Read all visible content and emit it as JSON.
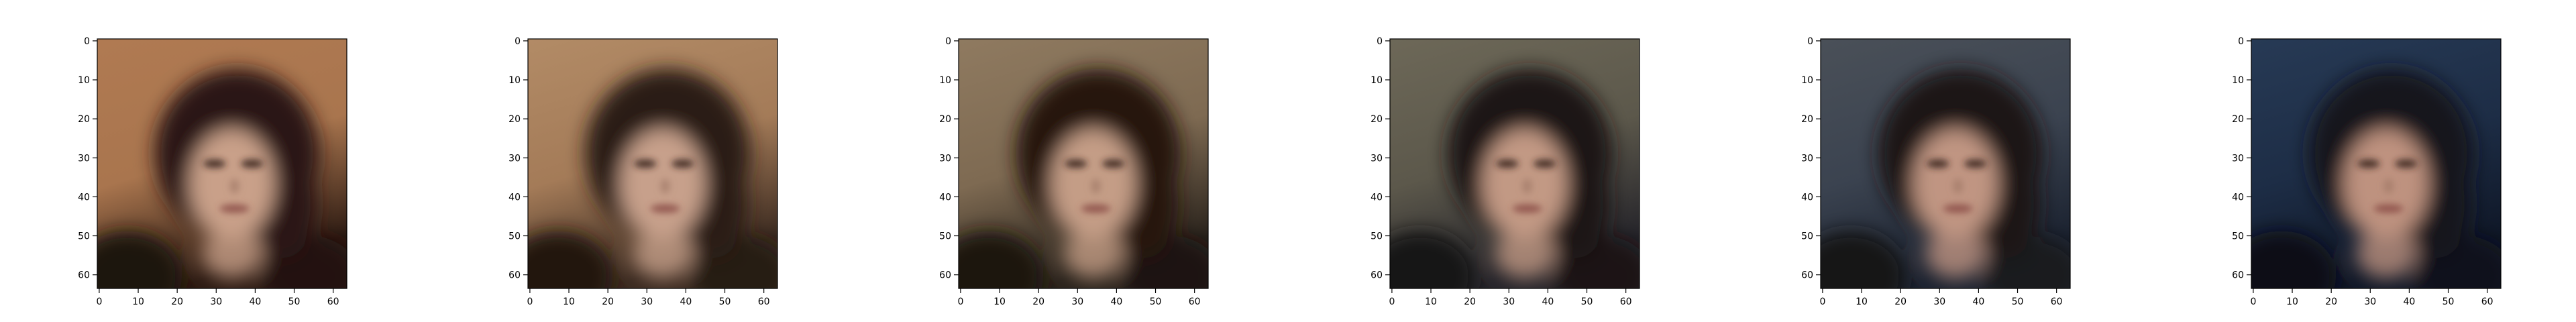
{
  "figure": {
    "panel_count": 6,
    "image_size": 64,
    "x_ticks": [
      "0",
      "10",
      "20",
      "30",
      "40",
      "50",
      "60"
    ],
    "y_ticks": [
      "0",
      "10",
      "20",
      "30",
      "40",
      "50",
      "60"
    ],
    "panels": [
      {
        "name": "panel-1",
        "bg_top": "#b07a52",
        "bg_mid": "#a9754e",
        "bg_bottom": "#2c1a12",
        "hair": "#2a1712",
        "skin": "#c9a089",
        "shadow": "#1e120e"
      },
      {
        "name": "panel-2",
        "bg_top": "#b28b66",
        "bg_mid": "#a47b58",
        "bg_bottom": "#3b2a20",
        "hair": "#2c1a15",
        "skin": "#c7a08b",
        "shadow": "#22160f"
      },
      {
        "name": "panel-3",
        "bg_top": "#8f7a60",
        "bg_mid": "#7e6a52",
        "bg_bottom": "#2a231c",
        "hair": "#25170f",
        "skin": "#c49d86",
        "shadow": "#1d140f"
      },
      {
        "name": "panel-4",
        "bg_top": "#6d6858",
        "bg_mid": "#5c584b",
        "bg_bottom": "#25242a",
        "hair": "#1f1613",
        "skin": "#c29984",
        "shadow": "#191414"
      },
      {
        "name": "panel-5",
        "bg_top": "#4a5058",
        "bg_mid": "#3b4350",
        "bg_bottom": "#1b2230",
        "hair": "#1a1517",
        "skin": "#c09582",
        "shadow": "#151519"
      },
      {
        "name": "panel-6",
        "bg_top": "#273a55",
        "bg_mid": "#1d2d46",
        "bg_bottom": "#0f1727",
        "hair": "#14121a",
        "skin": "#be927f",
        "shadow": "#101018"
      }
    ]
  }
}
